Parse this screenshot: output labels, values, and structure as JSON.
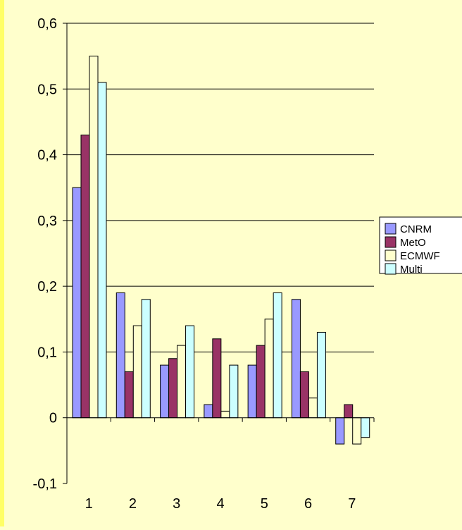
{
  "chart_data": {
    "type": "bar",
    "categories": [
      "1",
      "2",
      "3",
      "4",
      "5",
      "6",
      "7"
    ],
    "series": [
      {
        "name": "CNRM",
        "values": [
          0.35,
          0.19,
          0.08,
          0.02,
          0.08,
          0.18,
          -0.04
        ],
        "color": "#9999FF"
      },
      {
        "name": "MetO",
        "values": [
          0.43,
          0.07,
          0.09,
          0.12,
          0.11,
          0.07,
          0.02
        ],
        "color": "#993366"
      },
      {
        "name": "ECMWF",
        "values": [
          0.55,
          0.14,
          0.11,
          0.01,
          0.15,
          0.03,
          -0.04
        ],
        "color": "#FFFFCC"
      },
      {
        "name": "Multi",
        "values": [
          0.51,
          0.18,
          0.14,
          0.08,
          0.19,
          0.13,
          -0.03
        ],
        "color": "#CCFFFF"
      }
    ],
    "ylim": [
      -0.1,
      0.6
    ],
    "yticks": [
      -0.1,
      0,
      0.1,
      0.2,
      0.3,
      0.4,
      0.5,
      0.6
    ],
    "ytick_labels": [
      "-0,1",
      "0",
      "0,1",
      "0,2",
      "0,3",
      "0,4",
      "0,5",
      "0,6"
    ],
    "grid": true,
    "legend_placement": "right",
    "title": "",
    "xlabel": "",
    "ylabel": "",
    "background_color": "#FFFFCC"
  }
}
